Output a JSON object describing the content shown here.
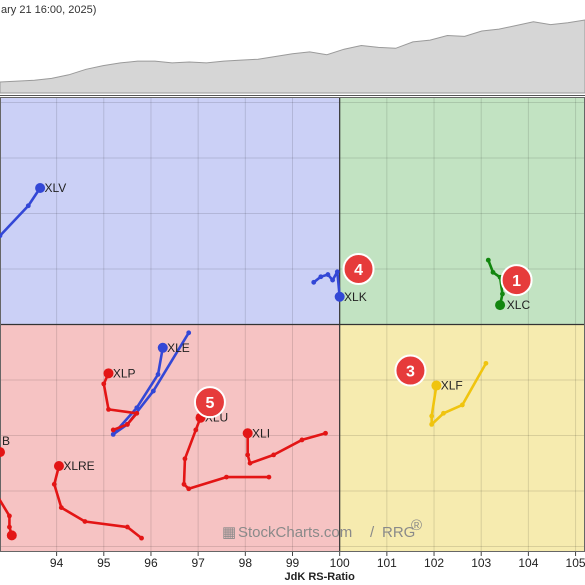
{
  "header": {
    "date_text": "ary 21 16:00, 2025)"
  },
  "watermark": {
    "brand": "StockCharts.com",
    "slash": "/",
    "product": "RRG",
    "reg": "®"
  },
  "chart_data": {
    "type": "scatter",
    "xlabel": "JdK RS-Ratio",
    "ylabel": "",
    "xlim": [
      92.8,
      105.2
    ],
    "ylim": [
      95.9,
      104.1
    ],
    "x_ticks": [
      94,
      95,
      96,
      97,
      98,
      99,
      100,
      101,
      102,
      103,
      104,
      105
    ],
    "center": [
      100,
      100
    ],
    "quadrant_colors": {
      "leading": "#c2e3c2",
      "weakening": "#f6ebaf",
      "lagging": "#f6c3c3",
      "improving": "#cbd0f6"
    },
    "grid": true,
    "series": [
      {
        "name": "XLC",
        "color": "#12860f",
        "points": [
          [
            103.15,
            101.16
          ],
          [
            103.25,
            100.94
          ],
          [
            103.4,
            100.85
          ],
          [
            103.45,
            100.55
          ],
          [
            103.4,
            100.35
          ]
        ]
      },
      {
        "name": "XLK",
        "color": "#3347d6",
        "points": [
          [
            99.45,
            100.76
          ],
          [
            99.6,
            100.86
          ],
          [
            99.75,
            100.9
          ],
          [
            99.85,
            100.8
          ],
          [
            99.95,
            100.95
          ],
          [
            100,
            100.5
          ]
        ]
      },
      {
        "name": "XLF",
        "color": "#f0c40e",
        "points": [
          [
            103.1,
            99.3
          ],
          [
            102.6,
            98.55
          ],
          [
            102.2,
            98.4
          ],
          [
            101.95,
            98.2
          ],
          [
            101.95,
            98.35
          ],
          [
            102.05,
            98.9
          ]
        ]
      },
      {
        "name": "XLV",
        "color": "#3347d6",
        "points": [
          [
            92.8,
            101.6
          ],
          [
            93.4,
            102.14
          ],
          [
            93.65,
            102.46
          ]
        ]
      },
      {
        "name": "XLE",
        "color": "#3347d6",
        "points": [
          [
            96.8,
            99.85
          ],
          [
            96.05,
            98.8
          ],
          [
            95.5,
            98.2
          ],
          [
            95.2,
            98.02
          ],
          [
            95.7,
            98.5
          ],
          [
            96.15,
            99.1
          ],
          [
            96.25,
            99.58
          ]
        ]
      },
      {
        "name": "XLP",
        "color": "#e31515",
        "points": [
          [
            95.2,
            98.1
          ],
          [
            95.5,
            98.2
          ],
          [
            95.7,
            98.4
          ],
          [
            95.1,
            98.47
          ],
          [
            95.0,
            98.93
          ],
          [
            95.1,
            99.12
          ]
        ]
      },
      {
        "name": "XLU",
        "color": "#e31515",
        "points": [
          [
            98.5,
            97.25
          ],
          [
            97.6,
            97.25
          ],
          [
            96.8,
            97.04
          ],
          [
            96.7,
            97.12
          ],
          [
            96.72,
            97.58
          ],
          [
            96.95,
            98.1
          ],
          [
            97.05,
            98.32
          ]
        ]
      },
      {
        "name": "XLI",
        "color": "#e31515",
        "points": [
          [
            99.7,
            98.04
          ],
          [
            99.2,
            97.92
          ],
          [
            98.6,
            97.65
          ],
          [
            98.1,
            97.5
          ],
          [
            98.05,
            97.65
          ],
          [
            98.05,
            98.04
          ]
        ]
      },
      {
        "name": "XLRE",
        "color": "#e31515",
        "points": [
          [
            95.8,
            96.15
          ],
          [
            95.5,
            96.35
          ],
          [
            94.6,
            96.45
          ],
          [
            94.1,
            96.7
          ],
          [
            93.95,
            97.12
          ],
          [
            94.05,
            97.45
          ]
        ]
      },
      {
        "name": "XLB",
        "color": "#e31515",
        "points": [
          [
            92.8,
            97.7
          ]
        ]
      },
      {
        "name": "",
        "color": "#e31515",
        "points": [
          [
            92.75,
            96.9
          ],
          [
            93.0,
            96.55
          ],
          [
            93.0,
            96.35
          ],
          [
            93.05,
            96.2
          ]
        ]
      }
    ],
    "labels": [
      {
        "text": "XLC",
        "x": 103.5,
        "y": 100.35
      },
      {
        "text": "XLK",
        "x": 100.05,
        "y": 100.5
      },
      {
        "text": "XLF",
        "x": 102.1,
        "y": 98.9
      },
      {
        "text": "XLV",
        "x": 93.7,
        "y": 102.46
      },
      {
        "text": "XLE",
        "x": 96.3,
        "y": 99.58
      },
      {
        "text": "XLP",
        "x": 95.15,
        "y": 99.12
      },
      {
        "text": "XLU",
        "x": 97.1,
        "y": 98.32
      },
      {
        "text": "XLI",
        "x": 98.1,
        "y": 98.04
      },
      {
        "text": "XLRE",
        "x": 94.1,
        "y": 97.45
      },
      {
        "text": "B",
        "x": 92.8,
        "y": 97.9
      }
    ],
    "badges": [
      {
        "text": "1",
        "x": 103.75,
        "y": 100.8
      },
      {
        "text": "3",
        "x": 101.5,
        "y": 99.17
      },
      {
        "text": "4",
        "x": 100.4,
        "y": 101.0
      },
      {
        "text": "5",
        "x": 97.25,
        "y": 98.6
      }
    ],
    "mini_chart": {
      "fill": "#d6d6d6",
      "line": "#9a9a9a",
      "values": [
        12,
        13,
        14,
        16,
        20,
        26,
        30,
        33,
        35,
        35,
        33,
        34,
        33,
        35,
        36,
        37,
        40,
        43,
        45,
        42,
        48,
        52,
        50,
        49,
        56,
        58,
        63,
        62,
        68,
        70,
        74,
        78,
        75,
        77,
        80
      ]
    }
  }
}
